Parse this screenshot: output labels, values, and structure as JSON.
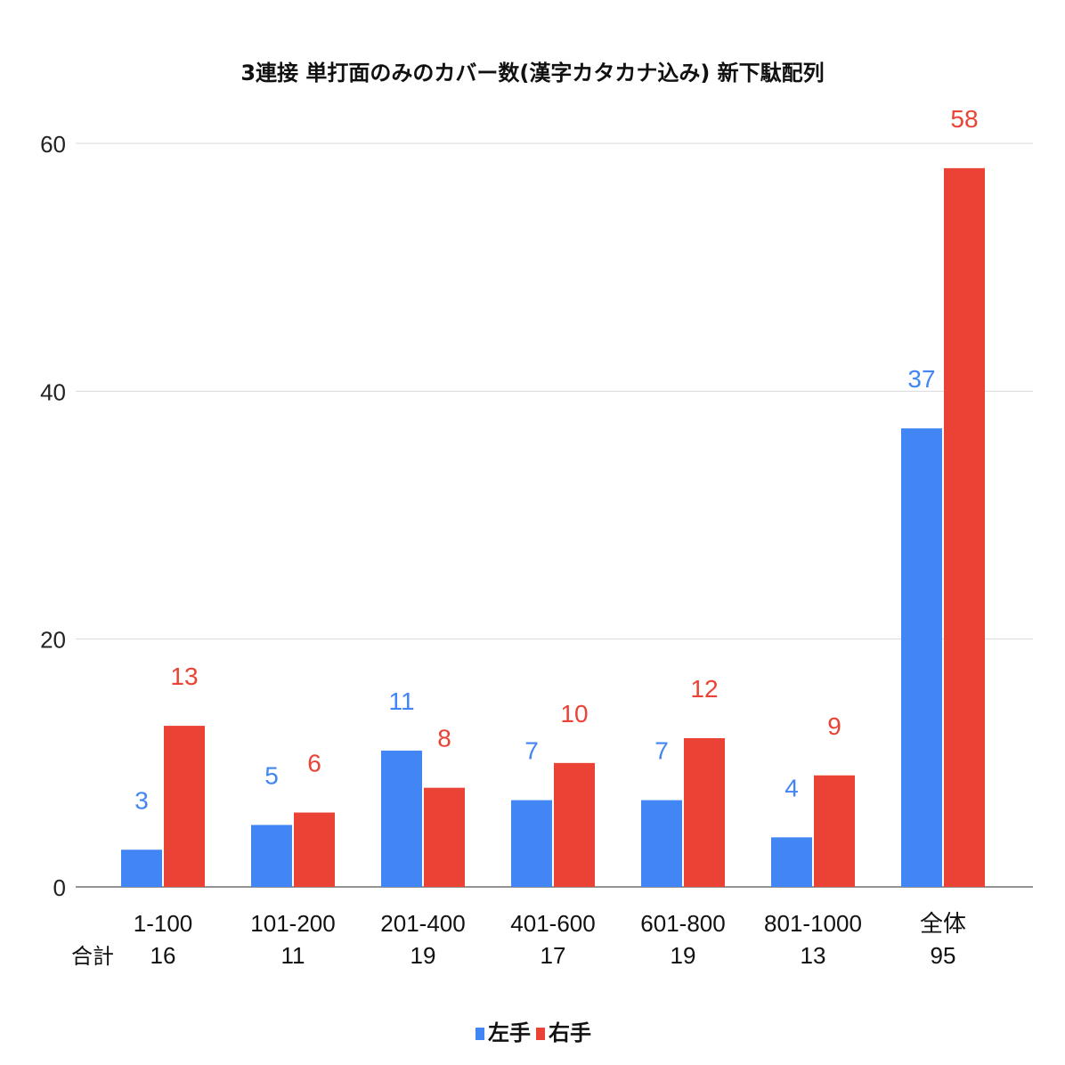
{
  "chart_data": {
    "type": "bar",
    "title": "3連接 単打面のみのカバー数(漢字カタカナ込み) 新下駄配列",
    "categories": [
      "1-100",
      "101-200",
      "201-400",
      "401-600",
      "601-800",
      "801-1000",
      "全体"
    ],
    "totals_label": "合計",
    "totals": [
      "16",
      "11",
      "19",
      "17",
      "19",
      "13",
      "95"
    ],
    "series": [
      {
        "name": "左手",
        "color": "#4285f4",
        "values": [
          3,
          5,
          11,
          7,
          7,
          4,
          37
        ]
      },
      {
        "name": "右手",
        "color": "#ea4335",
        "values": [
          13,
          6,
          8,
          10,
          12,
          9,
          58
        ]
      }
    ],
    "ylim": [
      0,
      60
    ],
    "yticks": [
      0,
      20,
      40,
      60
    ],
    "grid": true,
    "data_labels": true,
    "legend_position": "bottom"
  }
}
